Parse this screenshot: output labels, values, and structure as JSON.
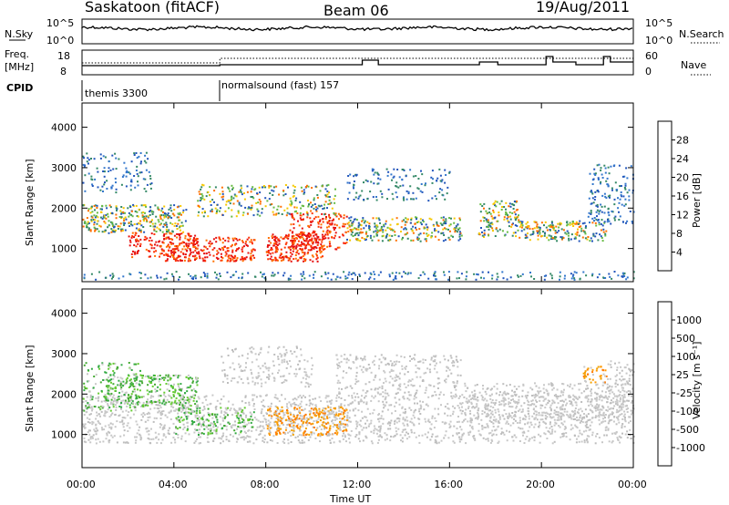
{
  "header": {
    "station": "Saskatoon (fitACF)",
    "beam": "Beam 06",
    "date": "19/Aug/2011"
  },
  "noise_panel": {
    "left_label": "N.Sky",
    "right_label": "N.Search",
    "left_ticks": [
      "10^5",
      "10^0"
    ],
    "right_ticks": [
      "10^5",
      "10^0"
    ]
  },
  "freq_panel": {
    "left_label_line1": "Freq.",
    "left_label_line2": "[MHz]",
    "right_label": "Nave",
    "left_ticks": [
      "18",
      "8"
    ],
    "right_ticks": [
      "60",
      "0"
    ]
  },
  "cpid_panel": {
    "label": "CPID",
    "segments": [
      {
        "text": "themis 3300",
        "start_hour": 0
      },
      {
        "text": "normalsound (fast) 157",
        "start_hour": 6
      }
    ]
  },
  "chart_data": [
    {
      "type": "heatmap",
      "name_shown": "power",
      "ylabel": "Slant Range [km]",
      "yticks": [
        1000,
        2000,
        3000,
        4000
      ],
      "ylim": [
        180,
        4600
      ],
      "colorbar_label": "Power [dB]",
      "colorbar_ticks": [
        "28",
        "24",
        "20",
        "16",
        "12",
        "8",
        "4"
      ],
      "colorbar_colors": [
        "#e61010",
        "#ff5a00",
        "#f08c00",
        "#f5c800",
        "#66cc33",
        "#338866",
        "#2255bb",
        "#1040ff"
      ]
    },
    {
      "type": "heatmap",
      "name_shown": "velocity",
      "ylabel": "Slant Range [km]",
      "yticks": [
        1000,
        2000,
        3000,
        4000
      ],
      "ylim": [
        180,
        4600
      ],
      "colorbar_label": "Velocity [m s⁻¹]",
      "colorbar_ticks": [
        "1000",
        "500",
        "100",
        "25",
        "-25",
        "-100",
        "-500",
        "-1000"
      ],
      "colorbar_colors": [
        "#2020cc",
        "#3070cc",
        "#33aa44",
        "#66cc33",
        "#c8c8c8",
        "#f0a000",
        "#ff7000",
        "#ff3000",
        "#e61010"
      ]
    }
  ],
  "time_axis": {
    "label": "Time UT",
    "ticks": [
      "00:00",
      "04:00",
      "08:00",
      "12:00",
      "16:00",
      "20:00",
      "00:00"
    ]
  },
  "colors": {
    "power_red": "#e61010",
    "power_orange": "#ff7000",
    "power_yellow": "#f5c800",
    "power_green": "#338866",
    "power_blue": "#2255bb",
    "vel_grey": "#c8c8c8",
    "vel_green": "#44aa33",
    "vel_orange": "#ff7a00"
  }
}
